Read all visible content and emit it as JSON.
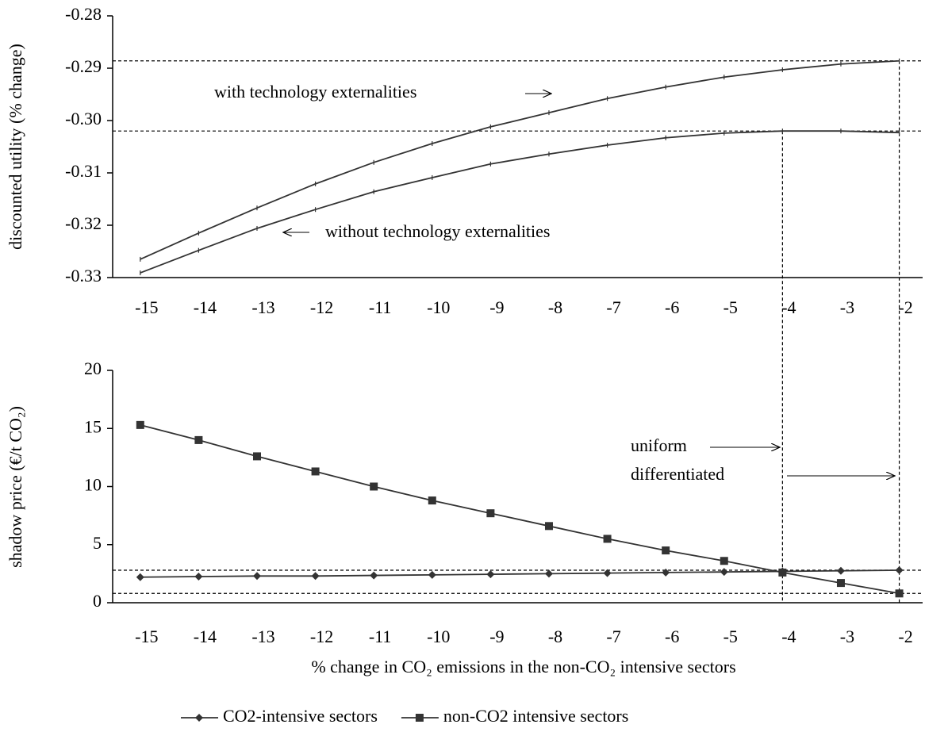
{
  "chart_data": [
    {
      "type": "line",
      "ylabel": "discounted utility (% change)",
      "x": [
        -15,
        -14,
        -13,
        -12,
        -11,
        -10,
        -9,
        -8,
        -7,
        -6,
        -5,
        -4,
        -3,
        -2
      ],
      "xlim": [
        -15.5,
        -1.6
      ],
      "ylim": [
        -0.33,
        -0.28
      ],
      "yticks": [
        -0.28,
        -0.29,
        {
          "value": -0.3,
          "label": "-0.30"
        },
        -0.31,
        -0.32,
        -0.33
      ],
      "series": [
        {
          "name": "with technology externalities",
          "color": "#333333",
          "marker": "dash",
          "values": [
            -0.3265,
            -0.3215,
            -0.3167,
            -0.3121,
            -0.308,
            -0.3044,
            -0.3012,
            -0.2985,
            -0.2958,
            -0.2936,
            -0.2917,
            -0.2903,
            -0.2892,
            -0.2886
          ]
        },
        {
          "name": "without technology externalities",
          "color": "#333333",
          "marker": "dash",
          "values": [
            -0.3291,
            -0.3248,
            -0.3206,
            -0.317,
            -0.3136,
            -0.3109,
            -0.3083,
            -0.3064,
            -0.3047,
            -0.3033,
            -0.3024,
            -0.302,
            -0.302,
            -0.3023
          ]
        }
      ],
      "hlines": [
        -0.2886,
        -0.302
      ],
      "vlines": [
        {
          "x": -4,
          "y": -0.302
        },
        {
          "x": -2,
          "y": -0.2886
        }
      ]
    },
    {
      "type": "line",
      "ylabel": "shadow price (€/t CO₂)",
      "xlabel": "% change in CO₂ emissions in the non-CO₂ intensive sectors",
      "x": [
        -15,
        -14,
        -13,
        -12,
        -11,
        -10,
        -9,
        -8,
        -7,
        -6,
        -5,
        -4,
        -3,
        -2
      ],
      "xlim": [
        -15.5,
        -1.6
      ],
      "ylim": [
        0,
        20
      ],
      "yticks": [
        0,
        5,
        10,
        15,
        20
      ],
      "series": [
        {
          "name": "CO2-intensive sectors",
          "color": "#333333",
          "marker": "diamond",
          "values": [
            2.2,
            2.25,
            2.3,
            2.3,
            2.35,
            2.4,
            2.45,
            2.5,
            2.55,
            2.6,
            2.65,
            2.7,
            2.75,
            2.8
          ]
        },
        {
          "name": "non-CO2 intensive sectors",
          "color": "#333333",
          "marker": "square",
          "values": [
            15.3,
            14.0,
            12.6,
            11.3,
            10.0,
            8.8,
            7.7,
            6.6,
            5.5,
            4.5,
            3.6,
            2.6,
            1.7,
            0.8
          ]
        }
      ],
      "hlines": [
        2.8,
        0.8
      ],
      "annotations": [
        "uniform",
        "differentiated"
      ],
      "legend": "bottom"
    }
  ]
}
